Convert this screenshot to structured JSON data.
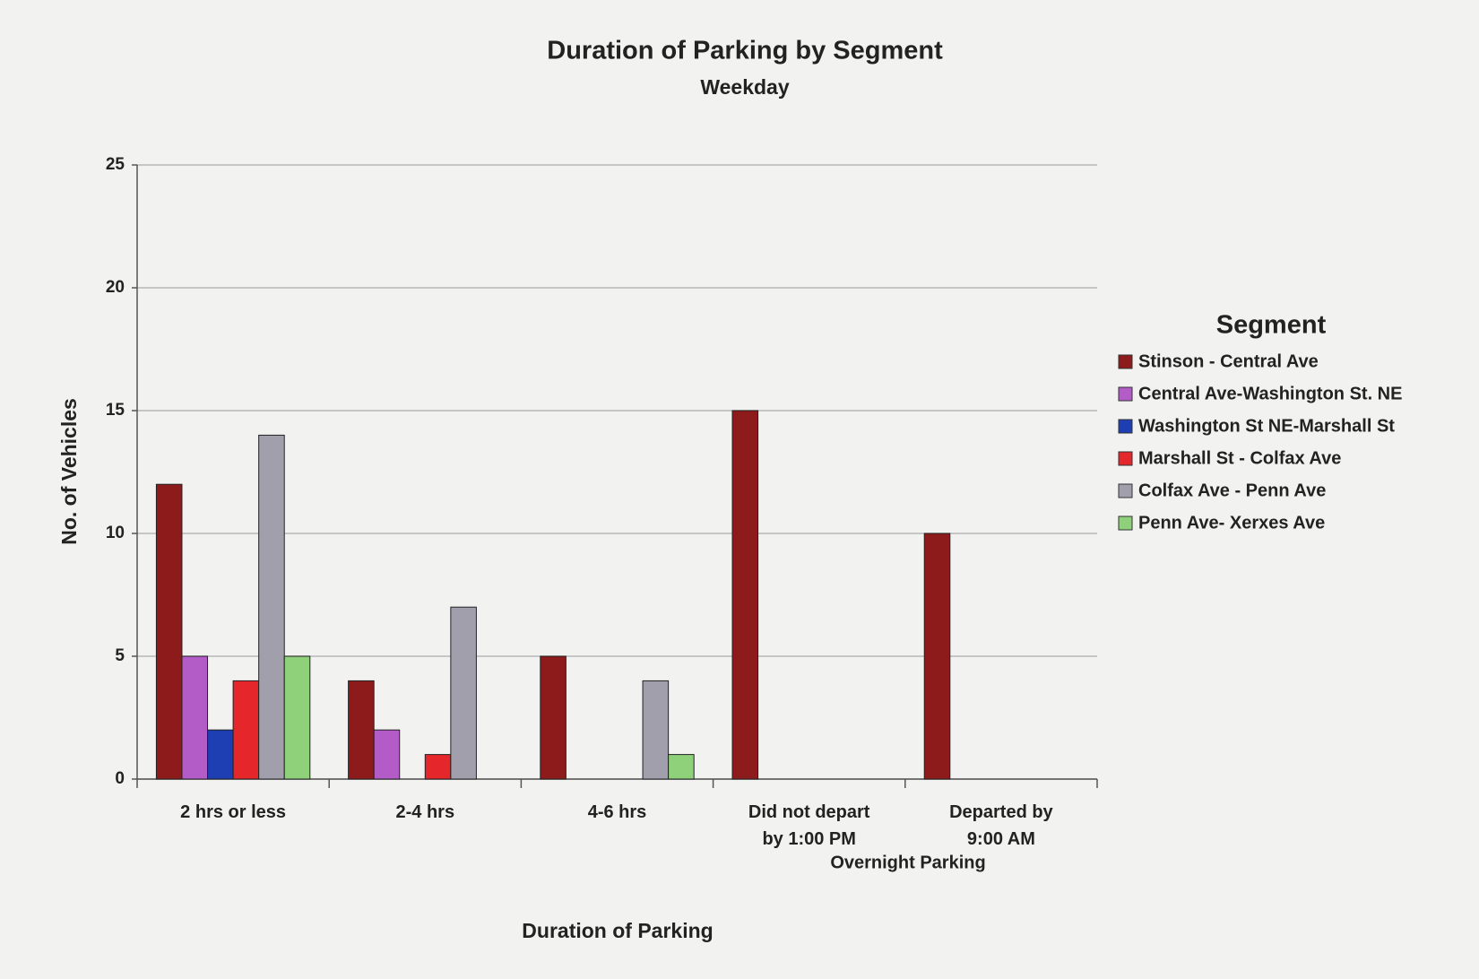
{
  "chart_data": {
    "type": "bar",
    "title": "Duration of Parking by Segment",
    "subtitle": "Weekday",
    "x_label": "Duration of Parking",
    "y_label": "No. of Vehicles",
    "annotation": "Overnight Parking",
    "legend_title": "Segment",
    "legend": "right",
    "grid": true,
    "categories": [
      "2 hrs or less",
      "2-4 hrs",
      "4-6 hrs",
      "Did not depart by 1:00 PM",
      "Departed by 9:00 AM"
    ],
    "series": [
      {
        "name": "Stinson - Central Ave",
        "color": "#8e1b1b",
        "values": [
          12,
          4,
          5,
          15,
          10
        ]
      },
      {
        "name": "Central Ave-Washington St. NE",
        "color": "#b35cc8",
        "values": [
          5,
          2,
          0,
          0,
          0
        ]
      },
      {
        "name": "Washington St NE-Marshall St",
        "color": "#1d3fb3",
        "values": [
          2,
          0,
          0,
          0,
          0
        ]
      },
      {
        "name": "Marshall St - Colfax Ave",
        "color": "#e5262a",
        "values": [
          4,
          1,
          0,
          0,
          0
        ]
      },
      {
        "name": "Colfax Ave - Penn Ave",
        "color": "#a29fad",
        "values": [
          14,
          7,
          4,
          0,
          0
        ]
      },
      {
        "name": "Penn Ave- Xerxes Ave",
        "color": "#8fd07a",
        "values": [
          5,
          0,
          1,
          0,
          0
        ]
      }
    ],
    "ylim": [
      0,
      25
    ],
    "yticks": [
      0,
      5,
      10,
      15,
      20,
      25
    ]
  }
}
